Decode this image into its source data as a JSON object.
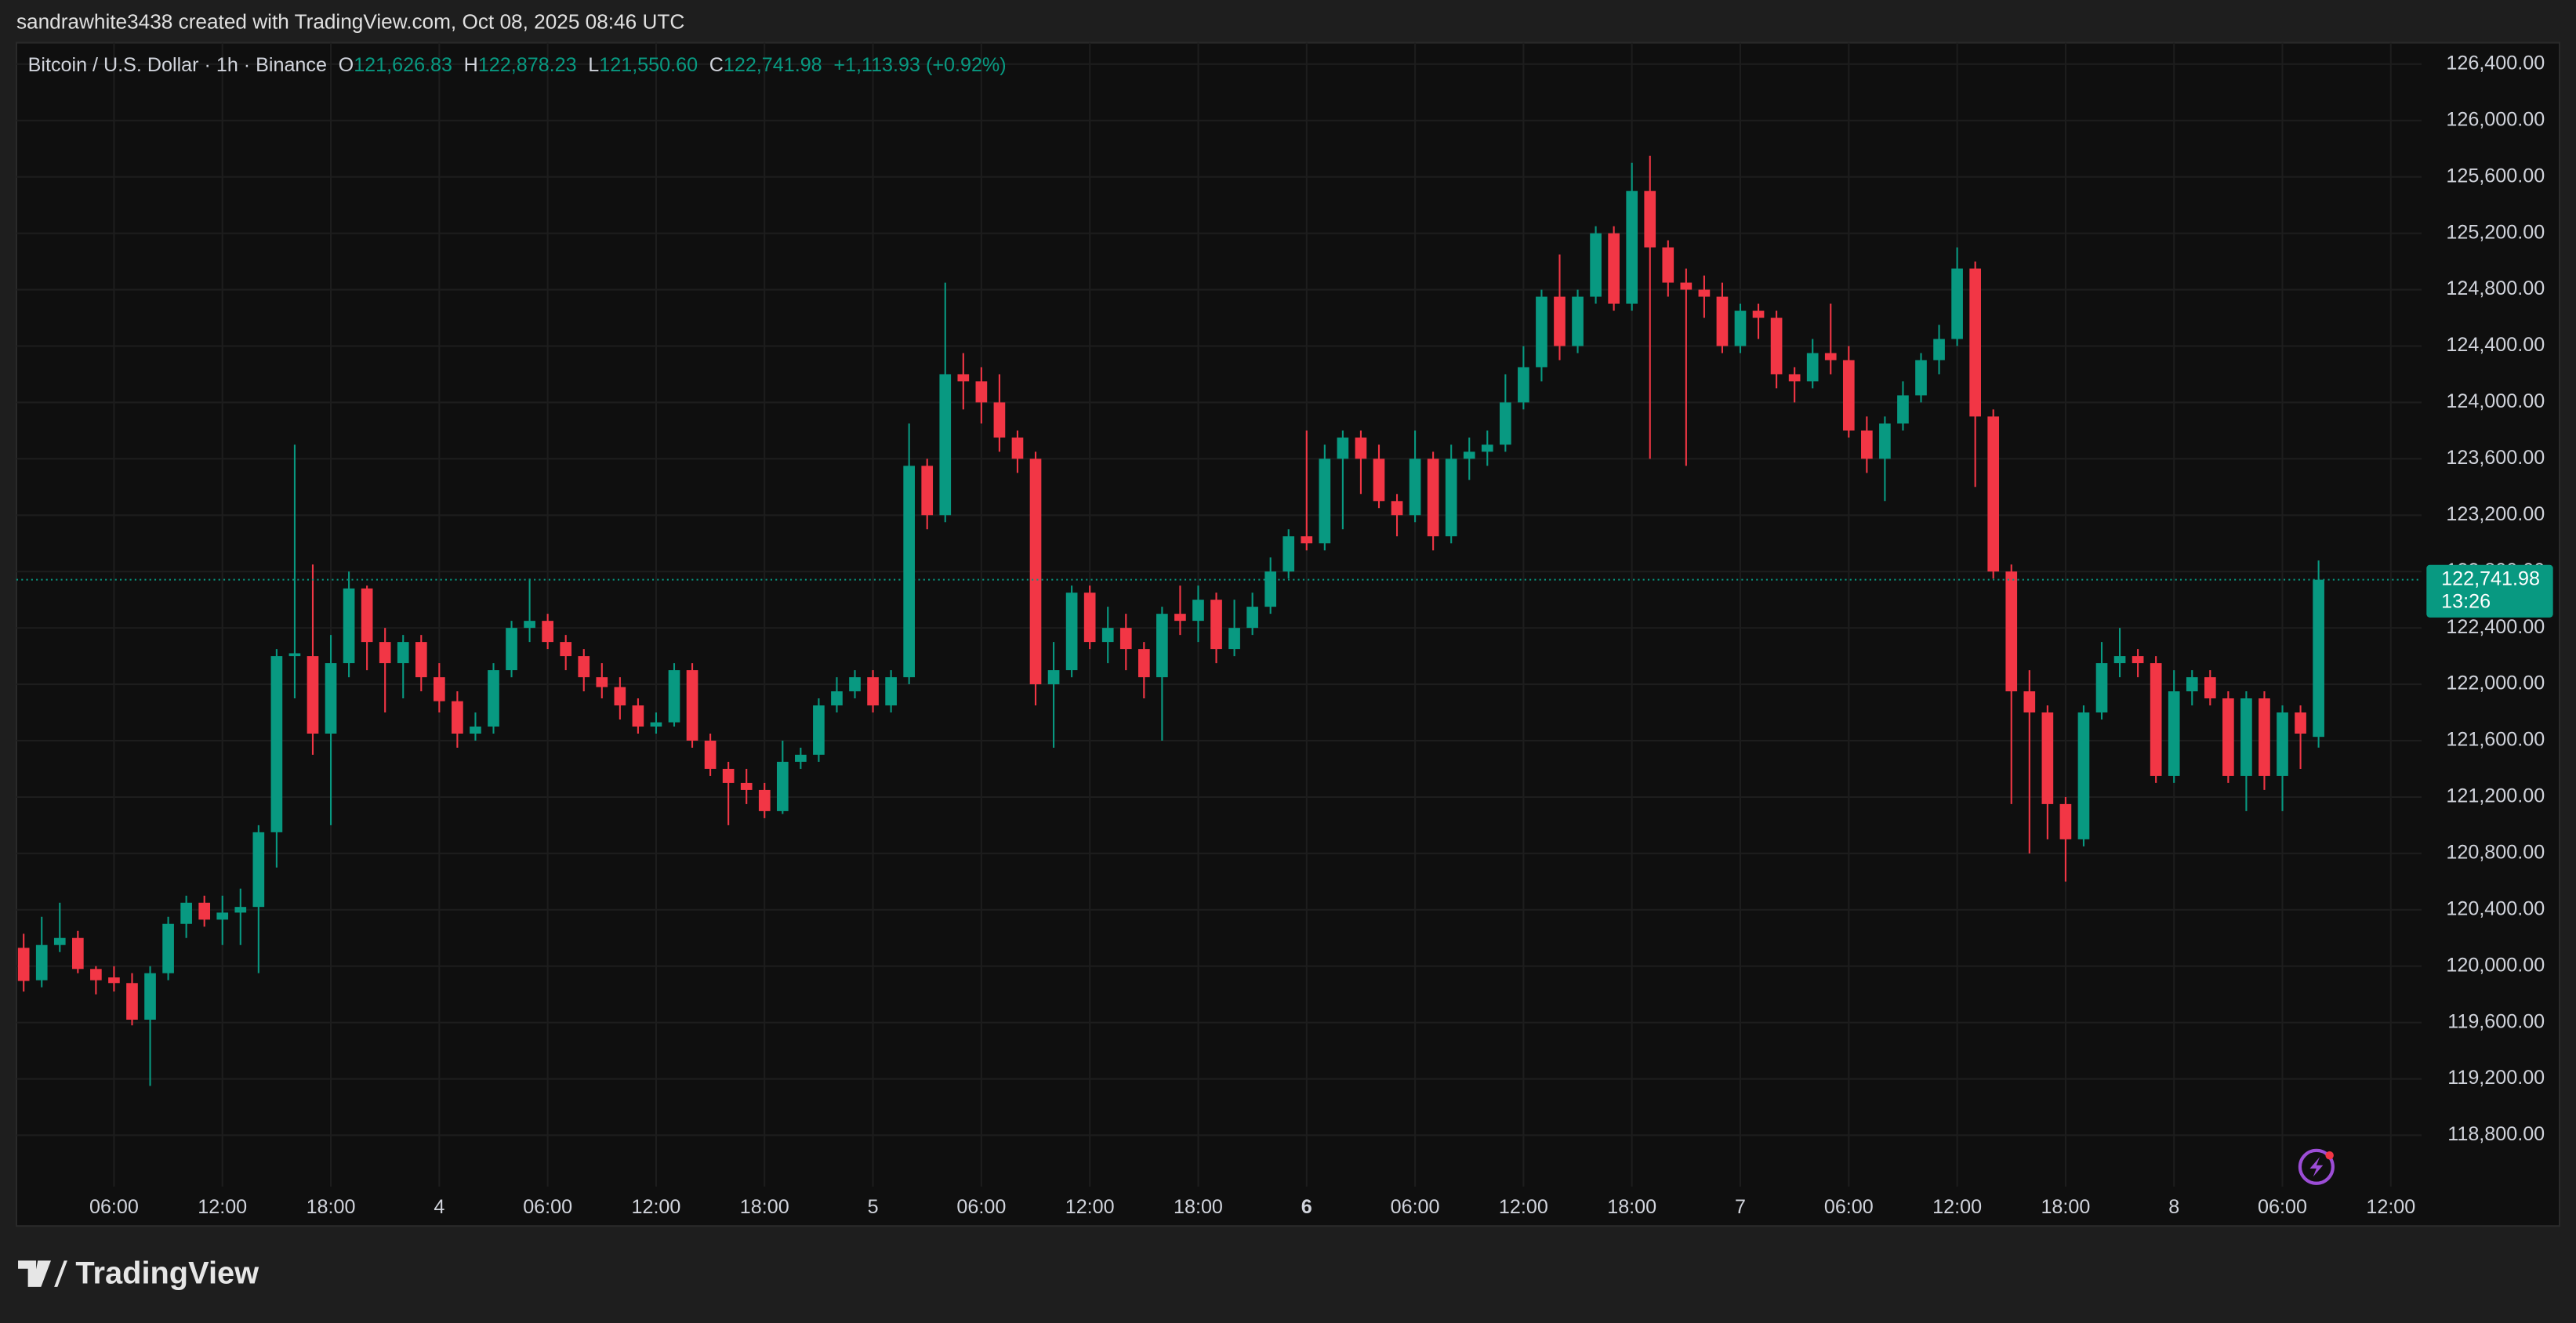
{
  "header": {
    "text": "sandrawhite3438 created with TradingView.com, Oct 08, 2025 08:46 UTC"
  },
  "footer": {
    "logo": "TradingView"
  },
  "chart_data": {
    "type": "candlestick",
    "legend": {
      "symbol": "Bitcoin / U.S. Dollar · 1h · Binance",
      "items": [
        {
          "key": "O",
          "value": "121,626.83"
        },
        {
          "key": "H",
          "value": "122,878.23"
        },
        {
          "key": "L",
          "value": "121,550.60"
        },
        {
          "key": "C",
          "value": "122,741.98"
        }
      ],
      "change": "+1,113.93 (+0.92%)"
    },
    "up_color": "#089981",
    "down_color": "#f23645",
    "last_price_label": "122,741.98",
    "countdown": "13:26",
    "xlim": [
      -0.4,
      132.7
    ],
    "xticks": [
      {
        "value": 5,
        "label": "06:00"
      },
      {
        "value": 11,
        "label": "12:00"
      },
      {
        "value": 17,
        "label": "18:00"
      },
      {
        "value": 23,
        "label": "4"
      },
      {
        "value": 29,
        "label": "06:00"
      },
      {
        "value": 35,
        "label": "12:00"
      },
      {
        "value": 41,
        "label": "18:00"
      },
      {
        "value": 47,
        "label": "5"
      },
      {
        "value": 53,
        "label": "06:00"
      },
      {
        "value": 59,
        "label": "12:00"
      },
      {
        "value": 65,
        "label": "18:00"
      },
      {
        "value": 71,
        "label": "6"
      },
      {
        "value": 77,
        "label": "06:00"
      },
      {
        "value": 83,
        "label": "12:00"
      },
      {
        "value": 89,
        "label": "18:00"
      },
      {
        "value": 95,
        "label": "7"
      },
      {
        "value": 101,
        "label": "06:00"
      },
      {
        "value": 107,
        "label": "12:00"
      },
      {
        "value": 113,
        "label": "18:00"
      },
      {
        "value": 119,
        "label": "8"
      },
      {
        "value": 125,
        "label": "06:00"
      },
      {
        "value": 131,
        "label": "12:00"
      }
    ],
    "ylim": [
      118156,
      126552
    ],
    "yticks": [
      {
        "value": 126400,
        "label": "126,400.00"
      },
      {
        "value": 126000,
        "label": "126,000.00"
      },
      {
        "value": 125600,
        "label": "125,600.00"
      },
      {
        "value": 125200,
        "label": "125,200.00"
      },
      {
        "value": 124800,
        "label": "124,800.00"
      },
      {
        "value": 124400,
        "label": "124,400.00"
      },
      {
        "value": 124000,
        "label": "124,000.00"
      },
      {
        "value": 123600,
        "label": "123,600.00"
      },
      {
        "value": 123200,
        "label": "123,200.00"
      },
      {
        "value": 122800,
        "label": "122,800.00"
      },
      {
        "value": 122400,
        "label": "122,400.00"
      },
      {
        "value": 122000,
        "label": "122,000.00"
      },
      {
        "value": 121600,
        "label": "121,600.00"
      },
      {
        "value": 121200,
        "label": "121,200.00"
      },
      {
        "value": 120800,
        "label": "120,800.00"
      },
      {
        "value": 120400,
        "label": "120,400.00"
      },
      {
        "value": 120000,
        "label": "120,000.00"
      },
      {
        "value": 119600,
        "label": "119,600.00"
      },
      {
        "value": 119200,
        "label": "119,200.00"
      },
      {
        "value": 118800,
        "label": "118,800.00"
      }
    ],
    "grid": true,
    "open": [
      120130,
      119900,
      120150,
      120200,
      119980,
      119920,
      119880,
      119620,
      119950,
      120300,
      120450,
      120330,
      120380,
      120420,
      120950,
      122200,
      122200,
      121650,
      122150,
      122680,
      122300,
      122150,
      122300,
      122050,
      121880,
      121650,
      121700,
      122100,
      122400,
      122450,
      122300,
      122200,
      122050,
      121980,
      121850,
      121700,
      121730,
      122100,
      121600,
      121400,
      121300,
      121250,
      121100,
      121450,
      121500,
      121850,
      121950,
      122050,
      121850,
      122050,
      123550,
      123200,
      124200,
      124150,
      124000,
      123750,
      123600,
      122000,
      122100,
      122650,
      122300,
      122400,
      122250,
      122050,
      122500,
      122450,
      122600,
      122250,
      122400,
      122550,
      122800,
      123050,
      123000,
      123600,
      123750,
      123600,
      123300,
      123200,
      123600,
      123050,
      123600,
      123650,
      123700,
      124000,
      124250,
      124750,
      124400,
      124750,
      125200,
      124700,
      125500,
      125100,
      124850,
      124800,
      124750,
      124400,
      124650,
      124600,
      124200,
      124150,
      124350,
      124300,
      123800,
      123600,
      123850,
      124050,
      124300,
      124450,
      124950,
      123900,
      122800,
      121950,
      121800,
      121150,
      120900,
      121800,
      122150,
      122200,
      122150,
      121350,
      121950,
      122050,
      121900,
      121350,
      121900,
      121350,
      121800,
      121626.83
    ],
    "high": [
      120230,
      120350,
      120450,
      120250,
      120000,
      120000,
      119950,
      120000,
      120350,
      120500,
      120500,
      120500,
      120550,
      121000,
      122250,
      123700,
      122850,
      122350,
      122800,
      122700,
      122400,
      122350,
      122350,
      122150,
      121950,
      121800,
      122150,
      122450,
      122750,
      122500,
      122350,
      122250,
      122150,
      122050,
      121900,
      121800,
      122150,
      122150,
      121650,
      121450,
      121400,
      121300,
      121600,
      121550,
      121900,
      122050,
      122100,
      122100,
      122100,
      123850,
      123600,
      124850,
      124350,
      124250,
      124200,
      123800,
      123650,
      122300,
      122700,
      122700,
      122550,
      122500,
      122300,
      122550,
      122700,
      122700,
      122650,
      122600,
      122650,
      122900,
      123100,
      123800,
      123700,
      123800,
      123800,
      123700,
      123350,
      123800,
      123650,
      123700,
      123750,
      123800,
      124200,
      124400,
      124800,
      125050,
      124800,
      125250,
      125250,
      125700,
      125750,
      125150,
      124950,
      124900,
      124850,
      124700,
      124700,
      124650,
      124250,
      124450,
      124700,
      124400,
      123900,
      123900,
      124150,
      124350,
      124550,
      125100,
      125000,
      123950,
      122850,
      122100,
      121850,
      121200,
      121850,
      122300,
      122400,
      122250,
      122200,
      122100,
      122100,
      122100,
      121950,
      121950,
      121950,
      121850,
      121850,
      122878.23
    ],
    "low": [
      119820,
      119850,
      120100,
      119950,
      119800,
      119820,
      119580,
      119150,
      119900,
      120200,
      120280,
      120150,
      120150,
      119950,
      120700,
      121900,
      121500,
      121000,
      122050,
      122100,
      121800,
      121900,
      121950,
      121800,
      121550,
      121600,
      121650,
      122050,
      122300,
      122250,
      122100,
      121950,
      121900,
      121750,
      121650,
      121650,
      121700,
      121550,
      121350,
      121000,
      121150,
      121050,
      121080,
      121400,
      121450,
      121800,
      121900,
      121800,
      121800,
      122000,
      123100,
      123150,
      123950,
      123850,
      123650,
      123500,
      121850,
      121550,
      122050,
      122250,
      122150,
      122100,
      121900,
      121600,
      122350,
      122300,
      122150,
      122200,
      122350,
      122500,
      122750,
      122950,
      122950,
      123100,
      123350,
      123250,
      123050,
      123150,
      122950,
      123000,
      123450,
      123550,
      123650,
      123950,
      124150,
      124300,
      124350,
      124700,
      124650,
      124650,
      123600,
      124750,
      123550,
      124600,
      124350,
      124350,
      124450,
      124100,
      124000,
      124100,
      124200,
      123750,
      123500,
      123300,
      123800,
      124000,
      124200,
      124400,
      123400,
      122750,
      121150,
      120800,
      120900,
      120600,
      120850,
      121750,
      122050,
      122050,
      121300,
      121300,
      121850,
      121850,
      121300,
      121100,
      121250,
      121100,
      121400,
      121550.6
    ],
    "close": [
      119895,
      120150,
      120200,
      119980,
      119900,
      119880,
      119620,
      119950,
      120300,
      120450,
      120330,
      120380,
      120420,
      120950,
      122200,
      122220,
      121650,
      122150,
      122680,
      122300,
      122150,
      122300,
      122050,
      121880,
      121650,
      121700,
      122100,
      122400,
      122450,
      122300,
      122200,
      122050,
      121980,
      121850,
      121700,
      121730,
      122100,
      121600,
      121400,
      121300,
      121250,
      121100,
      121450,
      121500,
      121850,
      121950,
      122050,
      121850,
      122050,
      123550,
      123200,
      124200,
      124150,
      124000,
      123750,
      123600,
      122000,
      122100,
      122650,
      122300,
      122400,
      122250,
      122050,
      122500,
      122450,
      122600,
      122250,
      122400,
      122550,
      122800,
      123050,
      123000,
      123600,
      123750,
      123600,
      123300,
      123200,
      123600,
      123050,
      123600,
      123650,
      123700,
      124000,
      124250,
      124750,
      124400,
      124750,
      125200,
      124700,
      125500,
      125100,
      124850,
      124800,
      124750,
      124400,
      124650,
      124600,
      124200,
      124150,
      124350,
      124300,
      123800,
      123600,
      123850,
      124050,
      124300,
      124450,
      124950,
      123900,
      122800,
      121950,
      121800,
      121150,
      120900,
      121800,
      122150,
      122200,
      122150,
      121350,
      121950,
      122050,
      121900,
      121350,
      121900,
      121350,
      121800,
      121650,
      122741.98
    ]
  }
}
